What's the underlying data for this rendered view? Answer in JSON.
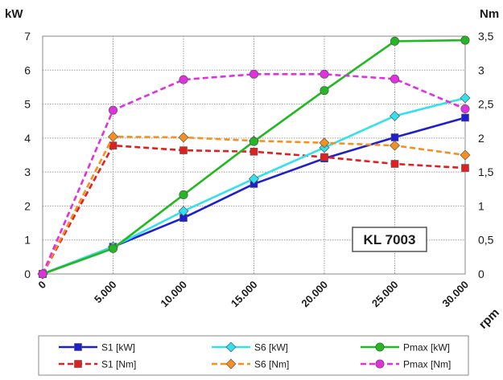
{
  "chart_data": {
    "type": "line",
    "x": [
      0,
      5000,
      10000,
      15000,
      20000,
      25000,
      30000
    ],
    "xtick_labels": [
      "0",
      "5.000",
      "10.000",
      "15.000",
      "20.000",
      "25.000",
      "30.000"
    ],
    "xlabel": "rpm",
    "ylabel_left": "kW",
    "ylabel_right": "Nm",
    "ylim_left": [
      0,
      7
    ],
    "ylim_right": [
      0,
      3.5
    ],
    "yticks_left": [
      "0",
      "1",
      "2",
      "3",
      "4",
      "5",
      "6",
      "7"
    ],
    "yticks_right": [
      "0",
      "0,5",
      "1",
      "1,5",
      "2",
      "2,5",
      "3",
      "3,5"
    ],
    "grid": true,
    "annotation": "KL 7003",
    "legend_position": "bottom",
    "series": [
      {
        "name": "S1 [kW]",
        "axis": "left",
        "color": "#1f1fd0",
        "dash": "solid",
        "marker": "square",
        "values": [
          0,
          0.8,
          1.65,
          2.65,
          3.4,
          4.02,
          4.6
        ]
      },
      {
        "name": "S1 [Nm]",
        "axis": "right",
        "color": "#e02020",
        "dash": "dashed",
        "marker": "square",
        "values": [
          0,
          1.89,
          1.82,
          1.8,
          1.72,
          1.62,
          1.56
        ]
      },
      {
        "name": "S6 [kW]",
        "axis": "left",
        "color": "#33e0ee",
        "dash": "solid",
        "marker": "diamond",
        "values": [
          0,
          0.8,
          1.85,
          2.8,
          3.72,
          4.65,
          5.18
        ]
      },
      {
        "name": "S6 [Nm]",
        "axis": "right",
        "color": "#f39020",
        "dash": "dashed",
        "marker": "diamond",
        "values": [
          0,
          2.02,
          2.01,
          1.96,
          1.93,
          1.89,
          1.75
        ]
      },
      {
        "name": "Pmax [kW]",
        "axis": "left",
        "color": "#22b822",
        "dash": "solid",
        "marker": "circle",
        "values": [
          0,
          0.75,
          2.33,
          3.9,
          5.4,
          6.85,
          6.88
        ]
      },
      {
        "name": "Pmax [Nm]",
        "axis": "right",
        "color": "#e030e0",
        "dash": "dashed",
        "marker": "circle",
        "values": [
          0,
          2.41,
          2.86,
          2.94,
          2.94,
          2.87,
          2.43
        ]
      }
    ]
  }
}
